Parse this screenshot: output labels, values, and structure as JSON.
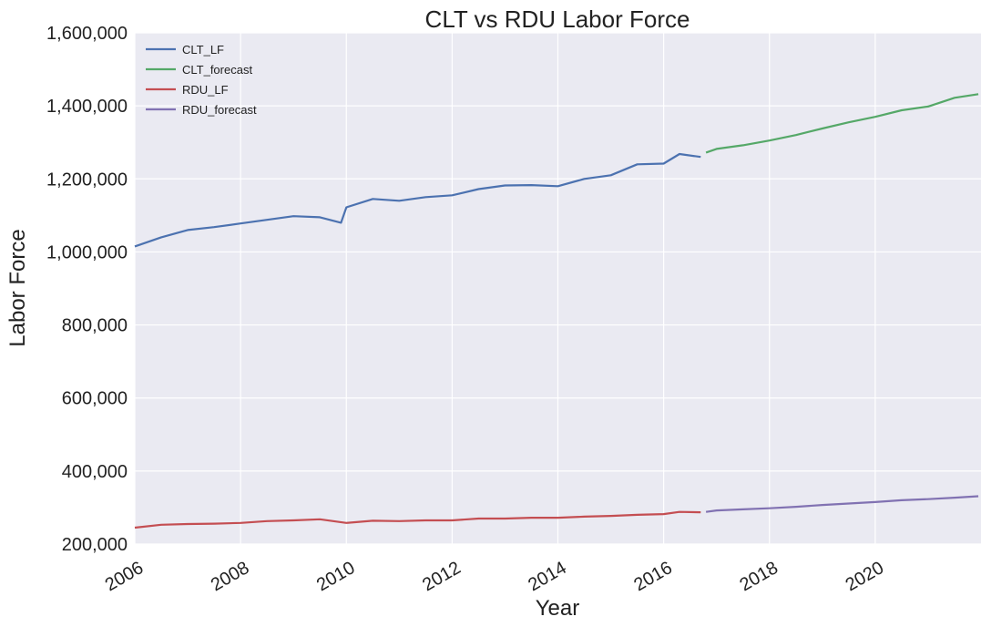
{
  "chart_data": {
    "type": "line",
    "title": "CLT vs RDU Labor Force",
    "xlabel": "Year",
    "ylabel": "Labor Force",
    "xlim": [
      2006.0,
      2022.0
    ],
    "ylim": [
      200000,
      1600000
    ],
    "xticks": [
      2006,
      2008,
      2010,
      2012,
      2014,
      2016,
      2018,
      2020
    ],
    "xtick_labels": [
      "2006",
      "2008",
      "2010",
      "2012",
      "2014",
      "2016",
      "2018",
      "2020"
    ],
    "yticks": [
      200000,
      400000,
      600000,
      800000,
      1000000,
      1200000,
      1400000,
      1600000
    ],
    "ytick_labels": [
      "200,000",
      "400,000",
      "600,000",
      "800,000",
      "1,000,000",
      "1,200,000",
      "1,400,000",
      "1,600,000"
    ],
    "grid": true,
    "legend_position": "top-left",
    "series": [
      {
        "name": "CLT_LF",
        "color": "#4c72b0",
        "x": [
          2006.0,
          2006.5,
          2007.0,
          2007.5,
          2008.0,
          2008.5,
          2009.0,
          2009.5,
          2009.9,
          2010.0,
          2010.5,
          2011.0,
          2011.5,
          2012.0,
          2012.5,
          2013.0,
          2013.5,
          2014.0,
          2014.5,
          2015.0,
          2015.5,
          2016.0,
          2016.3,
          2016.7
        ],
        "y": [
          1015000,
          1040000,
          1060000,
          1068000,
          1078000,
          1088000,
          1098000,
          1095000,
          1080000,
          1122000,
          1145000,
          1140000,
          1150000,
          1155000,
          1172000,
          1182000,
          1183000,
          1180000,
          1200000,
          1210000,
          1240000,
          1242000,
          1268000,
          1260000
        ]
      },
      {
        "name": "CLT_forecast",
        "color": "#55a868",
        "x": [
          2016.8,
          2017.0,
          2017.5,
          2018.0,
          2018.5,
          2019.0,
          2019.5,
          2020.0,
          2020.5,
          2021.0,
          2021.5,
          2021.95
        ],
        "y": [
          1272000,
          1282000,
          1292000,
          1305000,
          1320000,
          1338000,
          1355000,
          1370000,
          1388000,
          1398000,
          1422000,
          1432000
        ]
      },
      {
        "name": "RDU_LF",
        "color": "#c44e52",
        "x": [
          2006.0,
          2006.5,
          2007.0,
          2007.5,
          2008.0,
          2008.5,
          2009.0,
          2009.5,
          2010.0,
          2010.5,
          2011.0,
          2011.5,
          2012.0,
          2012.5,
          2013.0,
          2013.5,
          2014.0,
          2014.5,
          2015.0,
          2015.5,
          2016.0,
          2016.3,
          2016.7
        ],
        "y": [
          245000,
          253000,
          255000,
          256000,
          258000,
          263000,
          265000,
          268000,
          258000,
          264000,
          263000,
          265000,
          265000,
          270000,
          270000,
          272000,
          272000,
          275000,
          277000,
          280000,
          282000,
          288000,
          287000
        ]
      },
      {
        "name": "RDU_forecast",
        "color": "#8172b2",
        "x": [
          2016.8,
          2017.0,
          2017.5,
          2018.0,
          2018.5,
          2019.0,
          2019.5,
          2020.0,
          2020.5,
          2021.0,
          2021.5,
          2021.95
        ],
        "y": [
          288000,
          292000,
          295000,
          298000,
          302000,
          307000,
          311000,
          315000,
          320000,
          323000,
          327000,
          331000
        ]
      }
    ]
  }
}
